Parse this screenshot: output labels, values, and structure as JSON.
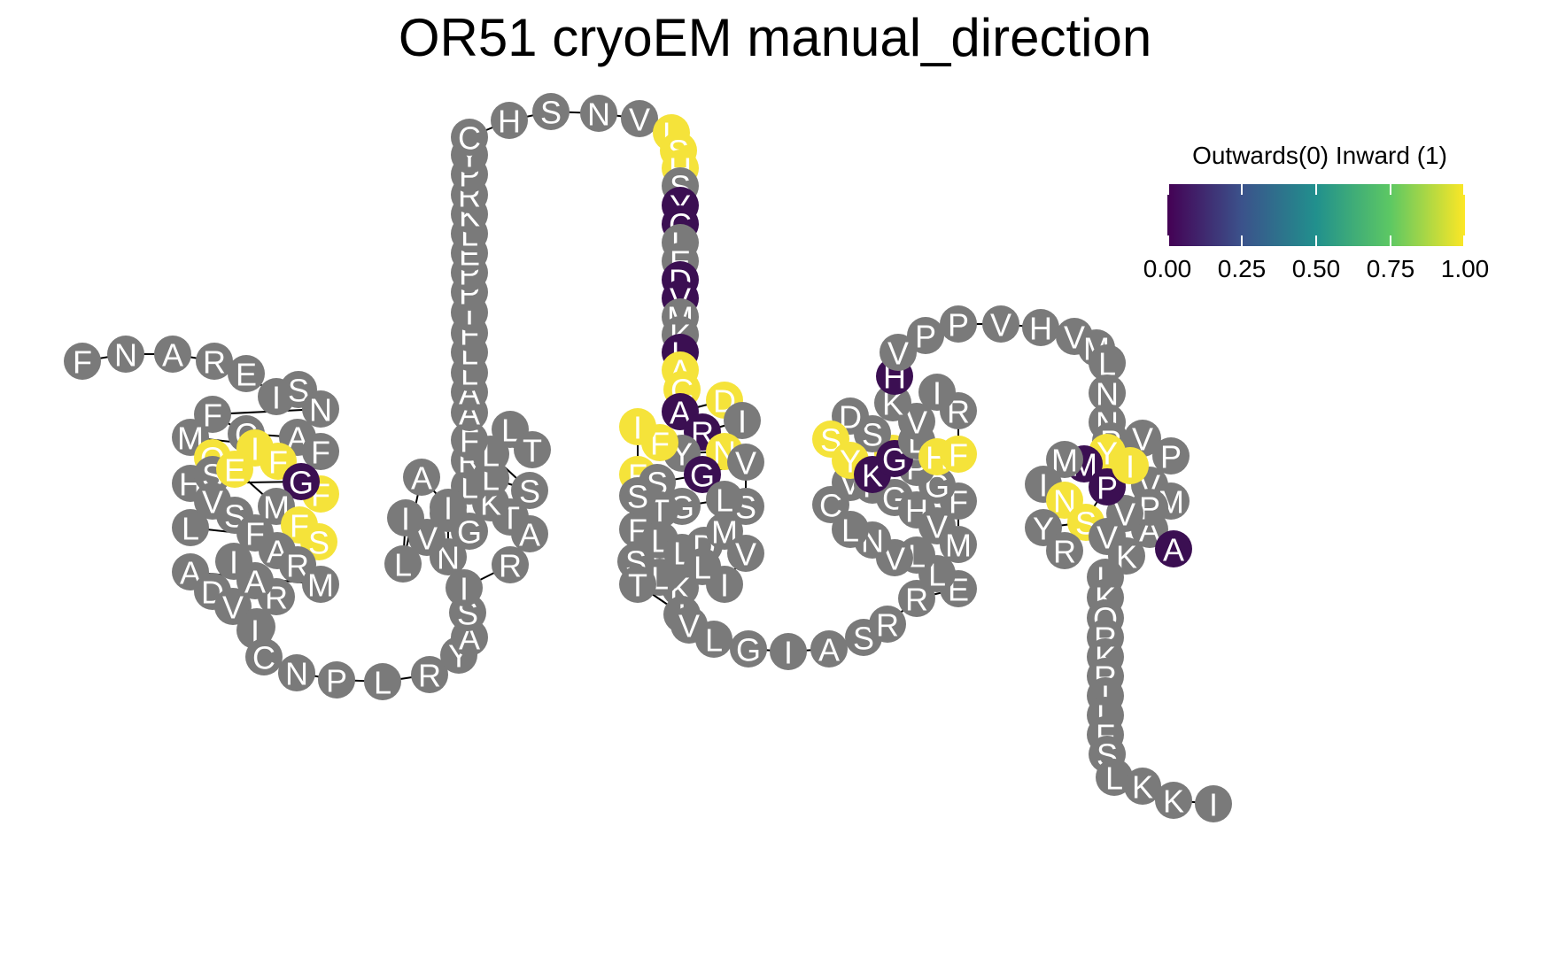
{
  "title": "OR51 cryoEM manual_direction",
  "legend": {
    "title": "Outwards(0) Inward (1)",
    "ticks": [
      "0.00",
      "0.25",
      "0.50",
      "0.75",
      "1.00"
    ],
    "colors": [
      "#440154",
      "#3b528b",
      "#21908d",
      "#5dc863",
      "#fde725"
    ]
  },
  "colors": {
    "unassigned": "#7a7a7a",
    "inward": "#f5e33a",
    "outward": "#3b0f52",
    "connector": "#000000",
    "label": "#ffffff"
  },
  "residues": "FNAREISNFCAFMQIFFGHSEMFSLVSFARMADVFRAIICNPLRYASIRATKLTNVILAGIRLSLLTFAALLFIPPELKRPYCHSNVLSHSYCLEDVMKLACADIRNYFIFSGVSLGTFSLLDMVILKLSTIVLGIASRRELLVNLCVFGHVMFGPVSDSYKGLHFRIVKHVPPVHVMLNNPVPVMAAPVYMMINSYRPIVKLKQRKRILFSLKKI"
}
